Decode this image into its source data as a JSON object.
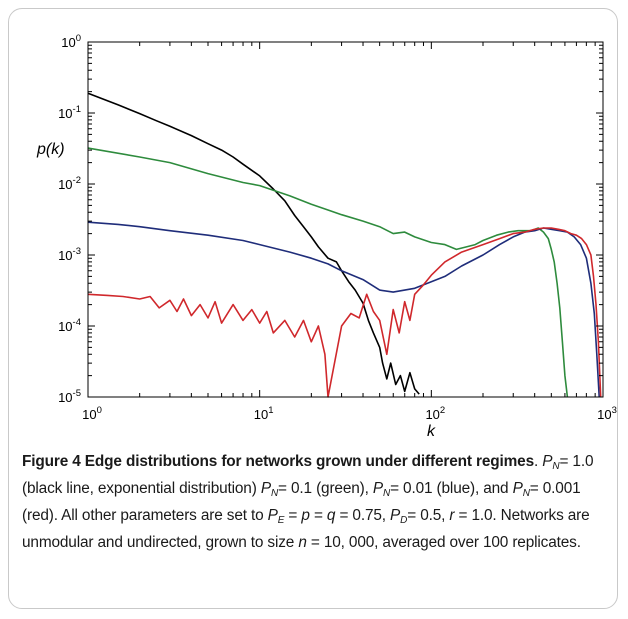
{
  "chart_data": {
    "type": "line",
    "xlabel": "k",
    "ylabel": "p(k)",
    "xscale": "log",
    "yscale": "log",
    "xlim": [
      1,
      1000
    ],
    "ylim": [
      1e-05,
      1
    ],
    "x_ticks": [
      {
        "value": 1,
        "base": "10",
        "exp": "0"
      },
      {
        "value": 10,
        "base": "10",
        "exp": "1"
      },
      {
        "value": 100,
        "base": "10",
        "exp": "2"
      },
      {
        "value": 1000,
        "base": "10",
        "exp": "3"
      }
    ],
    "y_ticks": [
      {
        "value": 1,
        "base": "10",
        "exp": "0"
      },
      {
        "value": 0.1,
        "base": "10",
        "exp": "-1"
      },
      {
        "value": 0.01,
        "base": "10",
        "exp": "-2"
      },
      {
        "value": 0.001,
        "base": "10",
        "exp": "-3"
      },
      {
        "value": 0.0001,
        "base": "10",
        "exp": "-4"
      },
      {
        "value": 1e-05,
        "base": "10",
        "exp": "-5"
      }
    ],
    "grid": false,
    "series": [
      {
        "color": "#000000",
        "points": [
          [
            1,
            0.19
          ],
          [
            1.2,
            0.16
          ],
          [
            1.5,
            0.13
          ],
          [
            2,
            0.098
          ],
          [
            2.5,
            0.078
          ],
          [
            3,
            0.065
          ],
          [
            4,
            0.048
          ],
          [
            5,
            0.037
          ],
          [
            6,
            0.03
          ],
          [
            7,
            0.024
          ],
          [
            8,
            0.019
          ],
          [
            10,
            0.013
          ],
          [
            12,
            0.0085
          ],
          [
            14,
            0.0058
          ],
          [
            16,
            0.0036
          ],
          [
            18,
            0.0025
          ],
          [
            20,
            0.0018
          ],
          [
            22,
            0.0013
          ],
          [
            25,
            0.0009
          ],
          [
            28,
            0.0008
          ],
          [
            30,
            0.0006
          ],
          [
            33,
            0.00042
          ],
          [
            36,
            0.00032
          ],
          [
            40,
            0.00021
          ],
          [
            43,
            0.00012
          ],
          [
            46,
            8e-05
          ],
          [
            50,
            5e-05
          ],
          [
            52,
            3e-05
          ],
          [
            55,
            1.8e-05
          ],
          [
            58,
            3e-05
          ],
          [
            62,
            1.5e-05
          ],
          [
            66,
            2e-05
          ],
          [
            70,
            1.2e-05
          ],
          [
            75,
            2.2e-05
          ],
          [
            80,
            1.3e-05
          ],
          [
            85,
            1.1e-05
          ]
        ]
      },
      {
        "color": "#2e8b3d",
        "points": [
          [
            1,
            0.032
          ],
          [
            2,
            0.024
          ],
          [
            3,
            0.02
          ],
          [
            5,
            0.014
          ],
          [
            8,
            0.0105
          ],
          [
            10,
            0.0095
          ],
          [
            15,
            0.0068
          ],
          [
            20,
            0.0052
          ],
          [
            25,
            0.0043
          ],
          [
            30,
            0.0037
          ],
          [
            40,
            0.003
          ],
          [
            50,
            0.0025
          ],
          [
            60,
            0.002
          ],
          [
            70,
            0.0021
          ],
          [
            80,
            0.0018
          ],
          [
            100,
            0.0015
          ],
          [
            120,
            0.0014
          ],
          [
            140,
            0.0012
          ],
          [
            160,
            0.0013
          ],
          [
            180,
            0.0014
          ],
          [
            200,
            0.0016
          ],
          [
            240,
            0.0019
          ],
          [
            280,
            0.0021
          ],
          [
            320,
            0.0022
          ],
          [
            380,
            0.0022
          ],
          [
            420,
            0.0024
          ],
          [
            450,
            0.0021
          ],
          [
            480,
            0.0017
          ],
          [
            500,
            0.0012
          ],
          [
            520,
            0.0008
          ],
          [
            540,
            0.0004
          ],
          [
            560,
            0.00018
          ],
          [
            580,
            6e-05
          ],
          [
            600,
            2e-05
          ],
          [
            620,
            1e-05
          ]
        ]
      },
      {
        "color": "#1f2d7a",
        "points": [
          [
            1,
            0.0029
          ],
          [
            1.5,
            0.0027
          ],
          [
            2,
            0.0025
          ],
          [
            3,
            0.0022
          ],
          [
            5,
            0.0019
          ],
          [
            8,
            0.0016
          ],
          [
            10,
            0.0014
          ],
          [
            15,
            0.0011
          ],
          [
            20,
            0.0009
          ],
          [
            25,
            0.00075
          ],
          [
            30,
            0.0006
          ],
          [
            40,
            0.00045
          ],
          [
            50,
            0.00032
          ],
          [
            60,
            0.0003
          ],
          [
            70,
            0.00032
          ],
          [
            80,
            0.00034
          ],
          [
            100,
            0.00042
          ],
          [
            120,
            0.0005
          ],
          [
            150,
            0.0007
          ],
          [
            200,
            0.001
          ],
          [
            250,
            0.0014
          ],
          [
            300,
            0.0018
          ],
          [
            350,
            0.0021
          ],
          [
            400,
            0.0022
          ],
          [
            450,
            0.0024
          ],
          [
            500,
            0.0023
          ],
          [
            560,
            0.0022
          ],
          [
            620,
            0.0021
          ],
          [
            680,
            0.0018
          ],
          [
            740,
            0.0014
          ],
          [
            800,
            0.0009
          ],
          [
            850,
            0.0004
          ],
          [
            890,
            0.00015
          ],
          [
            920,
            4e-05
          ],
          [
            950,
            1e-05
          ]
        ]
      },
      {
        "color": "#d0282c",
        "points": [
          [
            1,
            0.00028
          ],
          [
            1.3,
            0.00027
          ],
          [
            1.6,
            0.00026
          ],
          [
            2,
            0.00024
          ],
          [
            2.3,
            0.00026
          ],
          [
            2.6,
            0.00018
          ],
          [
            3,
            0.00023
          ],
          [
            3.3,
            0.00016
          ],
          [
            3.6,
            0.00024
          ],
          [
            4,
            0.00014
          ],
          [
            4.5,
            0.0002
          ],
          [
            5,
            0.00013
          ],
          [
            5.5,
            0.00022
          ],
          [
            6,
            0.00011
          ],
          [
            7,
            0.0002
          ],
          [
            8,
            0.00012
          ],
          [
            9,
            0.00017
          ],
          [
            10,
            0.00011
          ],
          [
            11,
            0.00016
          ],
          [
            12,
            8e-05
          ],
          [
            14,
            0.00012
          ],
          [
            16,
            7e-05
          ],
          [
            18,
            0.00012
          ],
          [
            20,
            6e-05
          ],
          [
            22,
            0.0001
          ],
          [
            24,
            4e-05
          ],
          [
            25,
            1e-05
          ],
          [
            30,
            0.0001
          ],
          [
            34,
            0.00015
          ],
          [
            38,
            0.00013
          ],
          [
            42,
            0.00028
          ],
          [
            46,
            0.00016
          ],
          [
            50,
            0.00012
          ],
          [
            55,
            4e-05
          ],
          [
            60,
            0.00017
          ],
          [
            65,
            8e-05
          ],
          [
            70,
            0.00022
          ],
          [
            75,
            0.00012
          ],
          [
            80,
            0.00028
          ],
          [
            90,
            0.00038
          ],
          [
            100,
            0.00052
          ],
          [
            120,
            0.0008
          ],
          [
            150,
            0.0011
          ],
          [
            200,
            0.0014
          ],
          [
            250,
            0.0017
          ],
          [
            300,
            0.002
          ],
          [
            350,
            0.0021
          ],
          [
            400,
            0.0023
          ],
          [
            450,
            0.0024
          ],
          [
            500,
            0.0024
          ],
          [
            550,
            0.0023
          ],
          [
            600,
            0.0022
          ],
          [
            650,
            0.002
          ],
          [
            700,
            0.0019
          ],
          [
            750,
            0.0017
          ],
          [
            800,
            0.0014
          ],
          [
            850,
            0.001
          ],
          [
            880,
            0.0005
          ],
          [
            910,
            0.0002
          ],
          [
            940,
            6e-05
          ],
          [
            970,
            1e-05
          ]
        ]
      }
    ]
  },
  "caption": {
    "title": "Figure 4 Edge distributions for networks grown under different regimes",
    "segments": [
      ". ",
      {
        "var": "P",
        "sub": "N"
      },
      "= 1.0 (black line, exponential distribution) ",
      {
        "var": "P",
        "sub": "N"
      },
      "= 0.1 (green), ",
      {
        "var": "P",
        "sub": "N"
      },
      "= 0.01 (blue), and ",
      {
        "var": "P",
        "sub": "N"
      },
      "= 0.001 (red). All other parameters are set to ",
      {
        "var": "P",
        "sub": "E"
      },
      " = ",
      {
        "var": "p"
      },
      " = ",
      {
        "var": "q"
      },
      " = 0.75, ",
      {
        "var": "P",
        "sub": "D"
      },
      "= 0.5, ",
      {
        "var": "r"
      },
      " = 1.0. Networks are unmodular and undirected, grown to size ",
      {
        "var": "n"
      },
      " = 10, 000, averaged over 100 replicates."
    ]
  }
}
